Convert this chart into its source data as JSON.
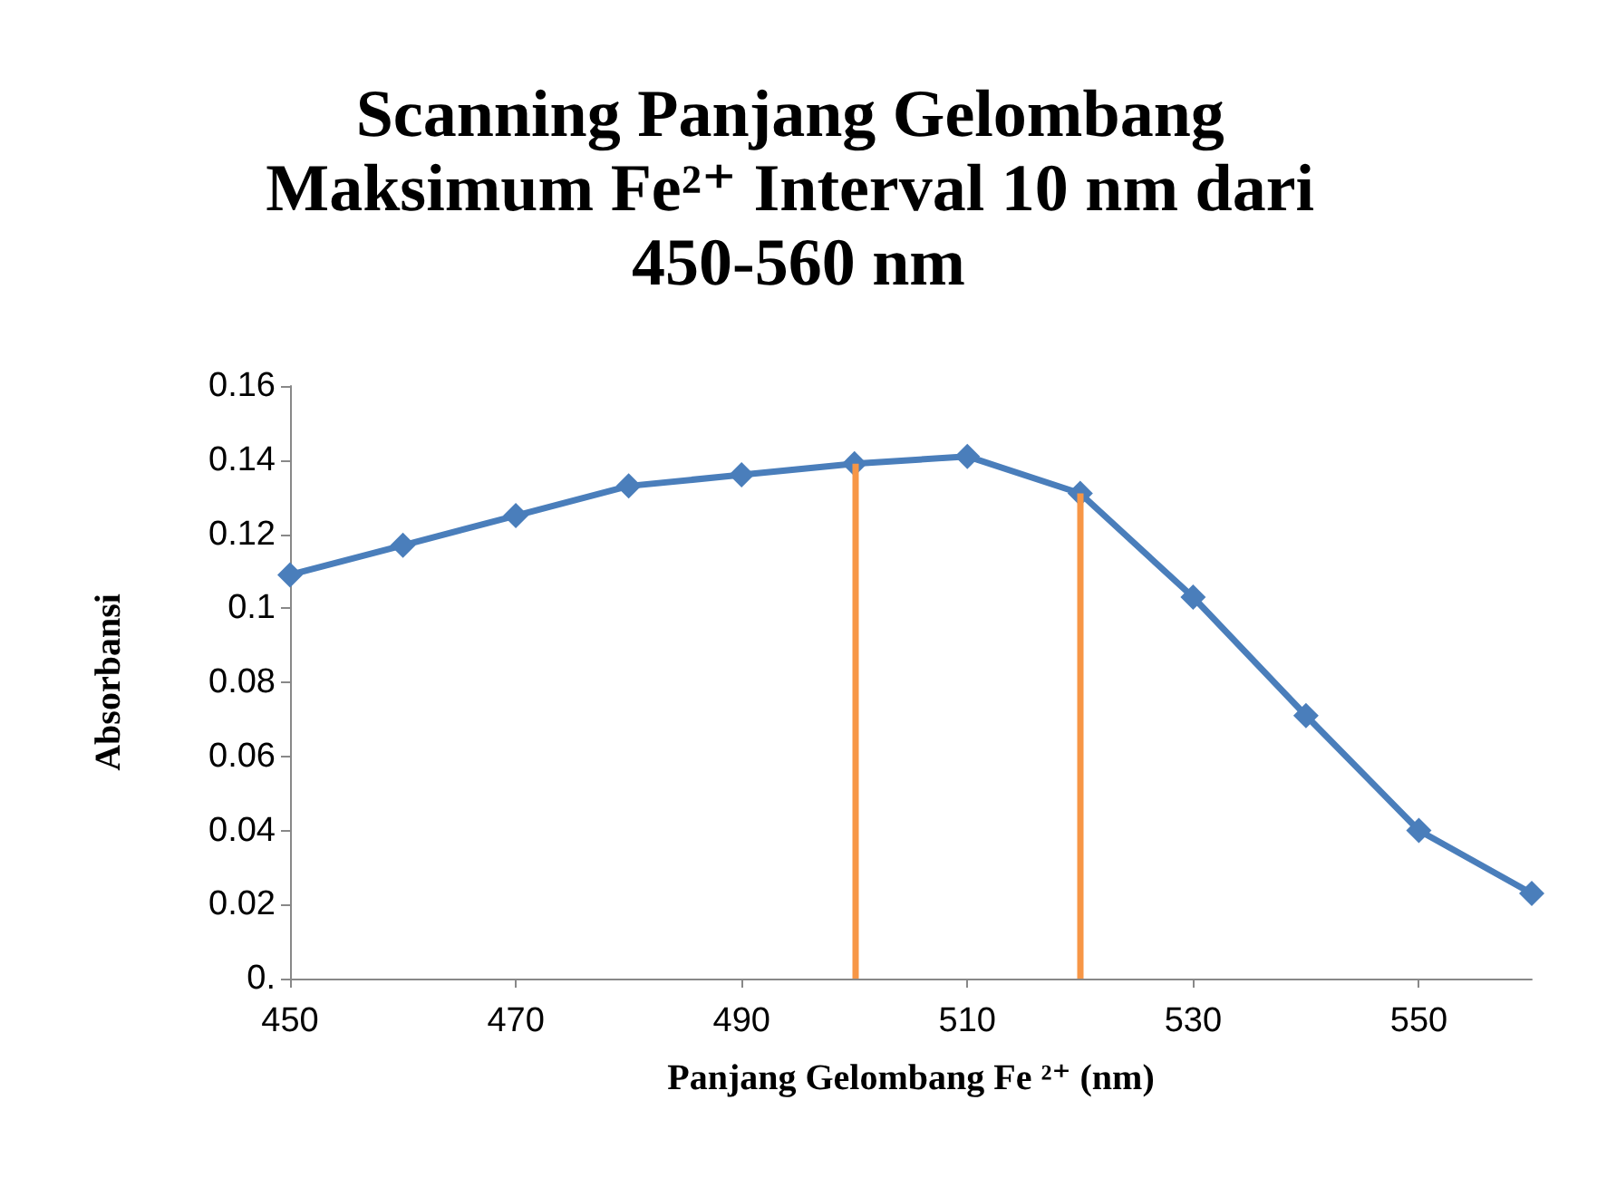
{
  "chart_data": {
    "type": "line",
    "title": "Scanning Panjang Gelombang Maksimum Fe²⁺ Interval 10 nm dari 450-560 nm",
    "xlabel": "Panjang Gelombang Fe ²⁺ (nm)",
    "ylabel": "Absorbansi",
    "x": [
      450,
      460,
      470,
      480,
      490,
      500,
      510,
      520,
      530,
      540,
      550,
      560
    ],
    "series": [
      {
        "color": "#4a7ebb",
        "values": [
          0.109,
          0.117,
          0.125,
          0.133,
          0.136,
          0.139,
          0.141,
          0.131,
          0.103,
          0.071,
          0.04,
          0.023
        ]
      }
    ],
    "xlim": [
      450,
      560
    ],
    "xticks": [
      450,
      470,
      490,
      510,
      530,
      550
    ],
    "ylim": [
      0,
      0.16
    ],
    "yticks": [
      {
        "value": 0,
        "label": "0."
      },
      0.02,
      0.04,
      0.06,
      0.08,
      0.1,
      0.12,
      0.14,
      0.16
    ],
    "ref_lines": [
      {
        "axis": "x",
        "value": 500,
        "color": "#f79646"
      },
      {
        "axis": "x",
        "value": 520,
        "color": "#f79646"
      }
    ],
    "grid": false,
    "marker": "diamond",
    "line_style": "solid"
  }
}
